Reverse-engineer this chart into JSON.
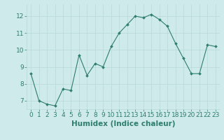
{
  "x": [
    0,
    1,
    2,
    3,
    4,
    5,
    6,
    7,
    8,
    9,
    10,
    11,
    12,
    13,
    14,
    15,
    16,
    17,
    18,
    19,
    20,
    21,
    22,
    23
  ],
  "y": [
    8.6,
    7.0,
    6.8,
    6.7,
    7.7,
    7.6,
    9.7,
    8.5,
    9.2,
    9.0,
    10.2,
    11.0,
    11.5,
    12.0,
    11.9,
    12.1,
    11.8,
    11.4,
    10.4,
    9.5,
    8.6,
    8.6,
    10.3,
    10.2
  ],
  "line_color": "#2e7d6e",
  "marker": "D",
  "marker_size": 2.0,
  "bg_color": "#ceeaea",
  "grid_color": "#b8d8d8",
  "xlabel": "Humidex (Indice chaleur)",
  "ylim": [
    6.5,
    12.7
  ],
  "xlim": [
    -0.5,
    23.5
  ],
  "yticks": [
    7,
    8,
    9,
    10,
    11,
    12
  ],
  "xticks": [
    0,
    1,
    2,
    3,
    4,
    5,
    6,
    7,
    8,
    9,
    10,
    11,
    12,
    13,
    14,
    15,
    16,
    17,
    18,
    19,
    20,
    21,
    22,
    23
  ],
  "tick_color": "#2e7d6e",
  "label_color": "#2e7d6e",
  "font_size_xlabel": 7.5,
  "font_size_ticks": 6.5,
  "linewidth": 0.8
}
